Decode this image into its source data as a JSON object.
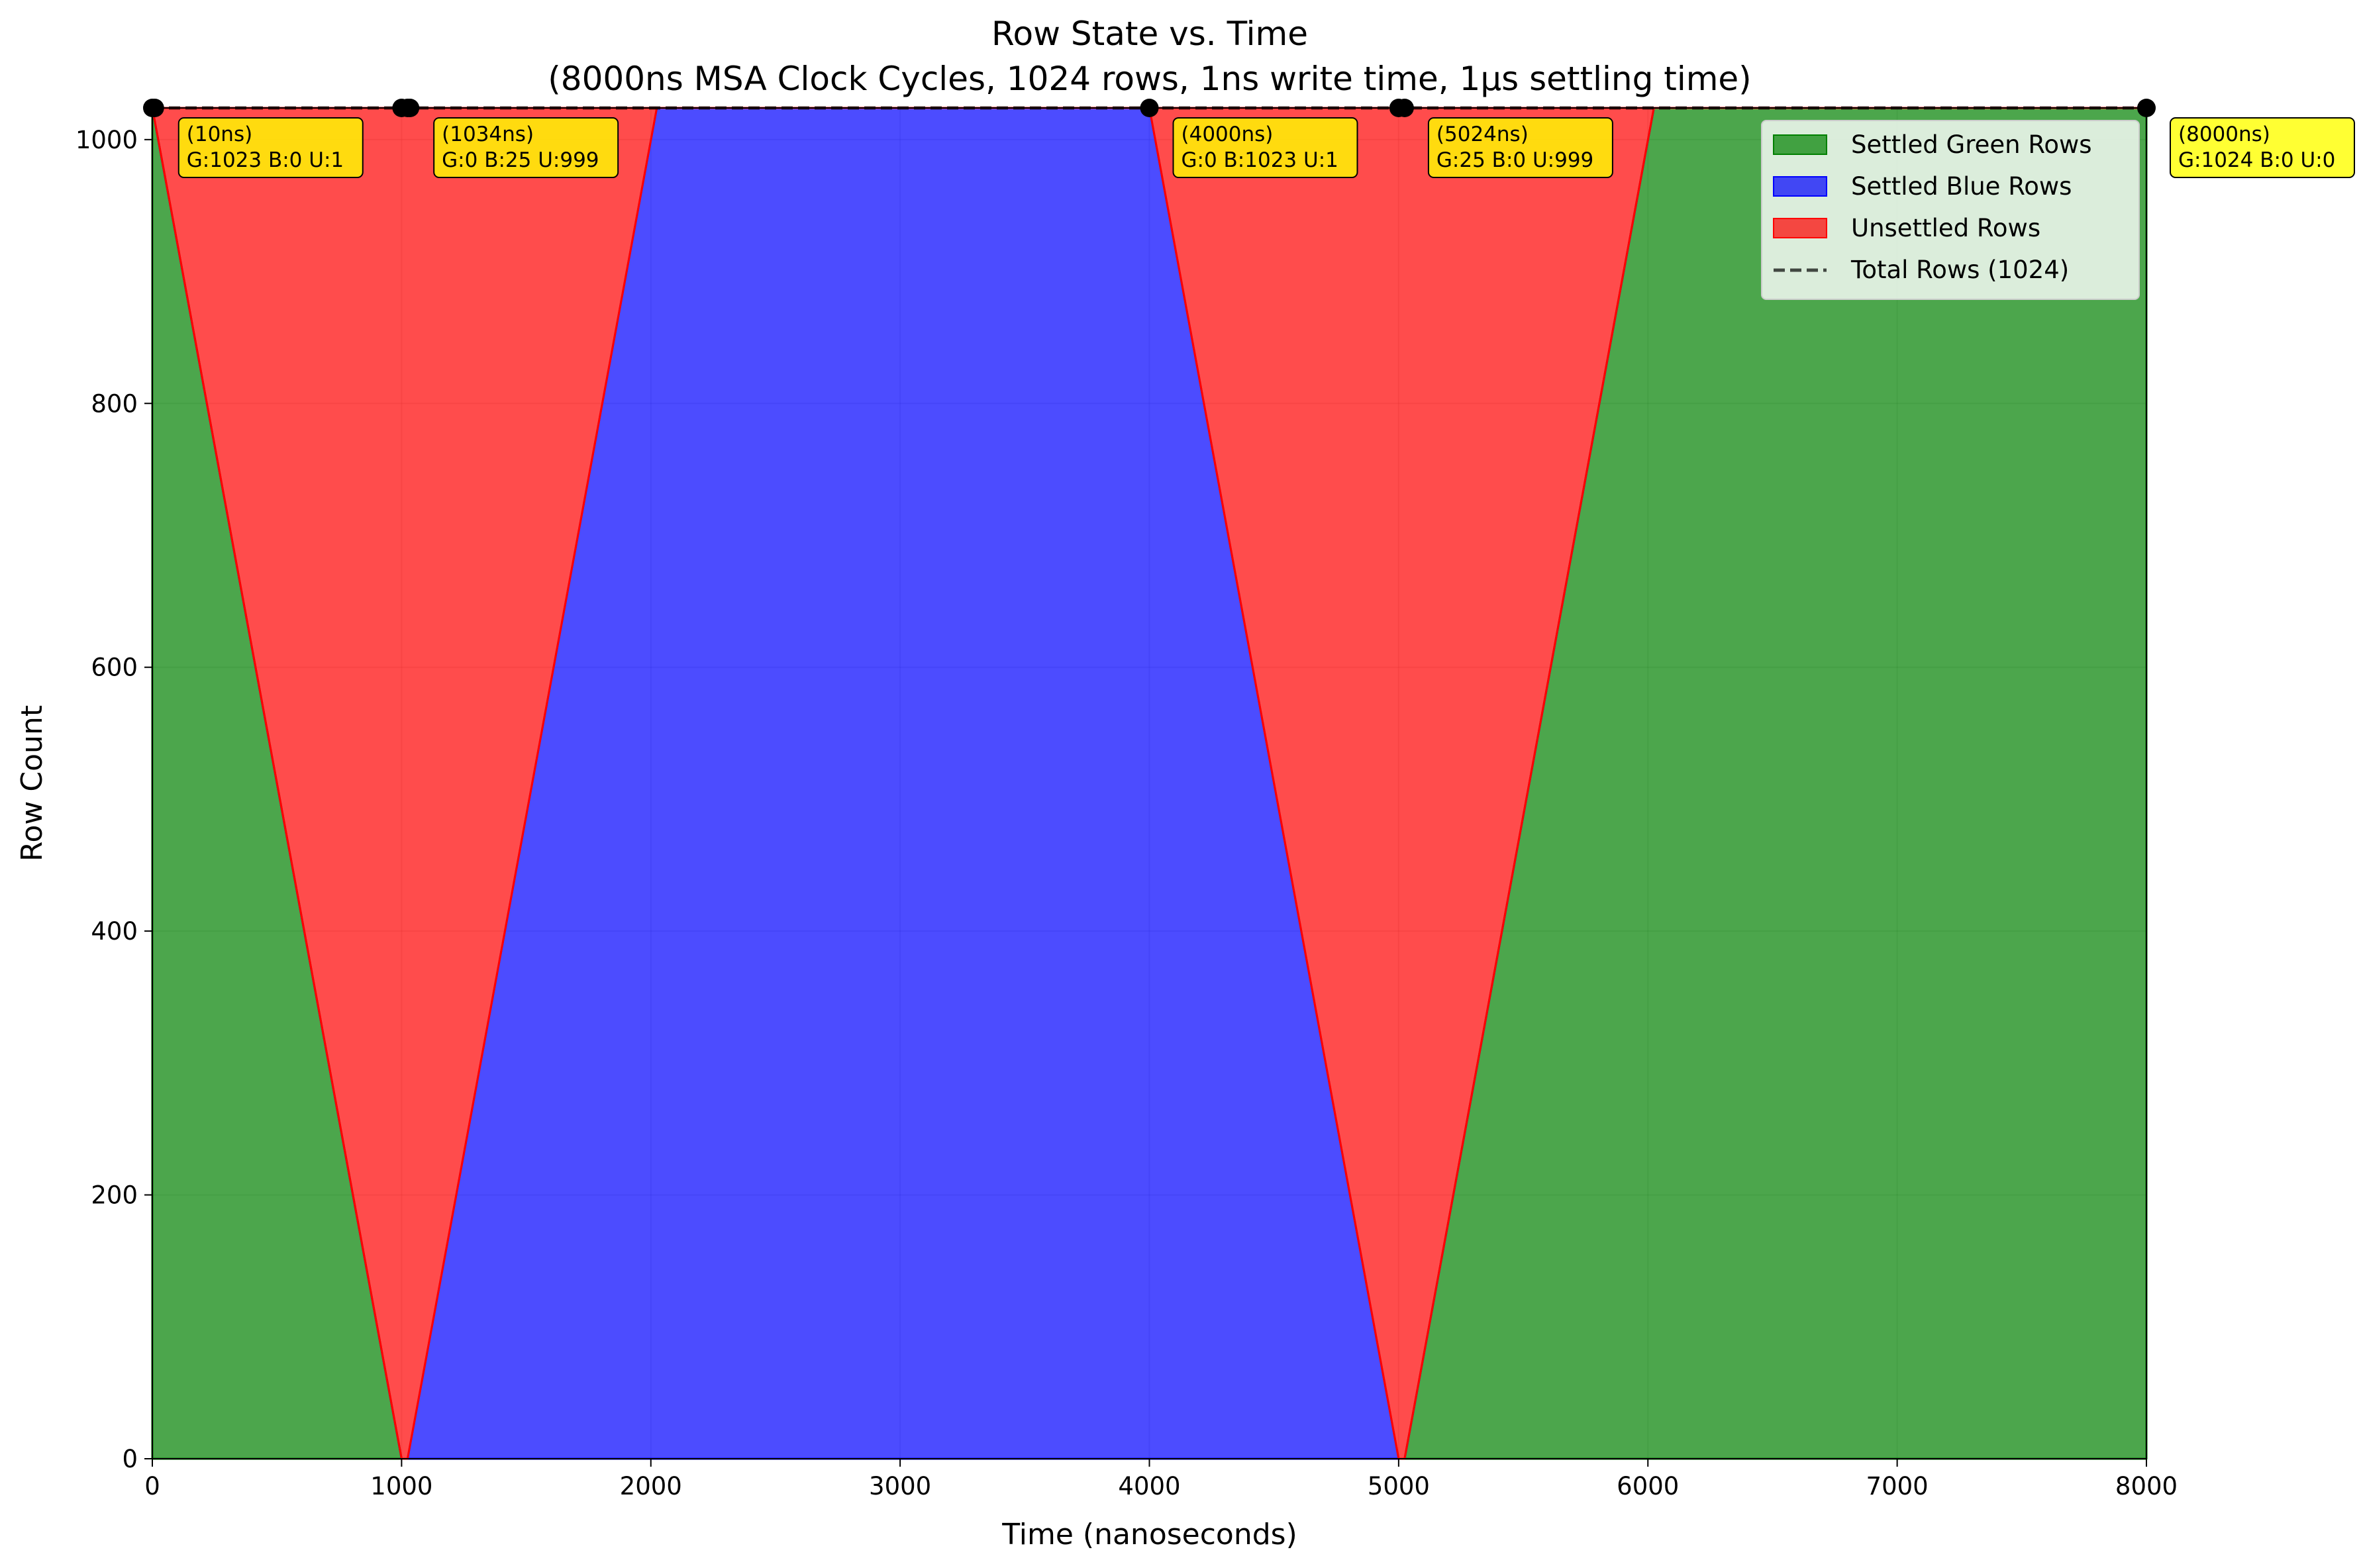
{
  "chart_data": {
    "type": "area",
    "title": "Row State vs. Time",
    "subtitle": "(8000ns MSA Clock Cycles, 1024 rows, 1ns write time, 1µs settling time)",
    "xlabel": "Time (nanoseconds)",
    "ylabel": "Row Count",
    "xlim": [
      0,
      8000
    ],
    "ylim": [
      0,
      1024
    ],
    "x_ticks": [
      0,
      1000,
      2000,
      3000,
      4000,
      5000,
      6000,
      7000,
      8000
    ],
    "y_ticks": [
      0,
      200,
      400,
      600,
      800,
      1000
    ],
    "grid": true,
    "legend_position": "top-right",
    "total_rows": 1024,
    "x": [
      0,
      1000,
      1024,
      2024,
      4000,
      5000,
      5024,
      6024,
      8000
    ],
    "series": [
      {
        "name": "Settled Green Rows",
        "color": "#008000",
        "values": [
          1024,
          0,
          0,
          0,
          0,
          0,
          0,
          1024,
          1024
        ]
      },
      {
        "name": "Settled Blue Rows",
        "color": "#0000ff",
        "values": [
          0,
          0,
          0,
          1024,
          1024,
          0,
          0,
          0,
          0
        ]
      },
      {
        "name": "Unsettled Rows",
        "color": "#ff0000",
        "values": [
          0,
          1024,
          1024,
          0,
          0,
          1024,
          1024,
          0,
          0
        ]
      }
    ],
    "total_line": {
      "name": "Total Rows (1024)",
      "value": 1024,
      "style": "dashed"
    },
    "markers_x": [
      0,
      10,
      1000,
      1024,
      1034,
      4000,
      5000,
      5024,
      8000
    ],
    "annotations": [
      {
        "x": 10,
        "line1": "(10ns)",
        "line2": "G:1023 B:0 U:1"
      },
      {
        "x": 1034,
        "line1": "(1034ns)",
        "line2": "G:0 B:25 U:999"
      },
      {
        "x": 4000,
        "line1": "(4000ns)",
        "line2": "G:0 B:1023 U:1"
      },
      {
        "x": 5024,
        "line1": "(5024ns)",
        "line2": "G:25 B:0 U:999"
      },
      {
        "x": 8000,
        "line1": "(8000ns)",
        "line2": "G:1024 B:0 U:0"
      }
    ]
  }
}
